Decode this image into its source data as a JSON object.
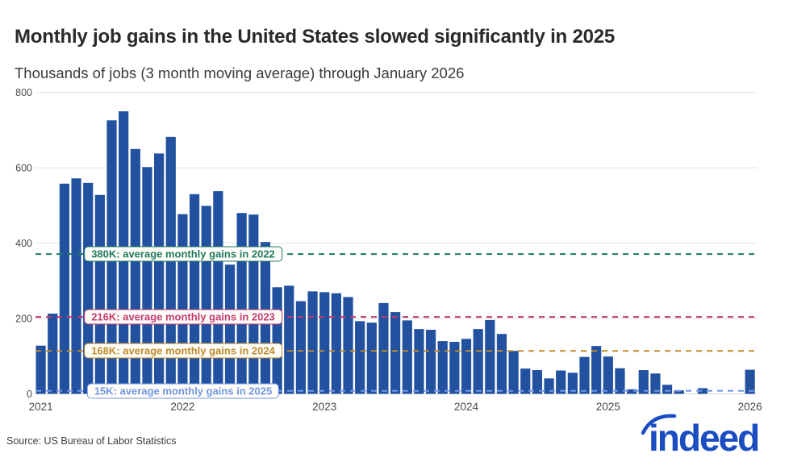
{
  "header": {
    "title": "Monthly job gains in the United States slowed significantly in 2025",
    "subtitle": "Thousands of jobs (3 month moving average) through January 2026"
  },
  "footer": {
    "source": "Source: US Bureau of Labor Statistics",
    "logo_text": "indeed"
  },
  "chart_data": {
    "type": "bar",
    "title": "Monthly job gains in the United States slowed significantly in 2025",
    "subtitle": "Thousands of jobs (3 month moving average) through January 2026",
    "ylabel": "Thousands of jobs",
    "ylim": [
      0,
      800
    ],
    "y_ticks": [
      0,
      200,
      400,
      600,
      800
    ],
    "x_tick_labels": [
      "2021",
      "2022",
      "2023",
      "2024",
      "2025",
      "2026"
    ],
    "grid": true,
    "bar_color": "#21519f",
    "grid_color": "#e2e2e7",
    "axis_text_color": "#4a4a4a",
    "x": [
      "2021-01",
      "2021-02",
      "2021-03",
      "2021-04",
      "2021-05",
      "2021-06",
      "2021-07",
      "2021-08",
      "2021-09",
      "2021-10",
      "2021-11",
      "2021-12",
      "2022-01",
      "2022-02",
      "2022-03",
      "2022-04",
      "2022-05",
      "2022-06",
      "2022-07",
      "2022-08",
      "2022-09",
      "2022-10",
      "2022-11",
      "2022-12",
      "2023-01",
      "2023-02",
      "2023-03",
      "2023-04",
      "2023-05",
      "2023-06",
      "2023-07",
      "2023-08",
      "2023-09",
      "2023-10",
      "2023-11",
      "2023-12",
      "2024-01",
      "2024-02",
      "2024-03",
      "2024-04",
      "2024-05",
      "2024-06",
      "2024-07",
      "2024-08",
      "2024-09",
      "2024-10",
      "2024-11",
      "2024-12",
      "2025-01",
      "2025-02",
      "2025-03",
      "2025-04",
      "2025-05",
      "2025-06",
      "2025-07",
      "2025-08",
      "2025-09",
      "2025-10",
      "2025-11",
      "2025-12",
      "2026-01"
    ],
    "values": [
      128,
      213,
      558,
      572,
      560,
      528,
      726,
      750,
      650,
      602,
      638,
      682,
      477,
      530,
      499,
      538,
      343,
      480,
      476,
      403,
      283,
      287,
      246,
      272,
      270,
      267,
      257,
      193,
      189,
      241,
      217,
      195,
      172,
      170,
      140,
      138,
      146,
      172,
      196,
      159,
      114,
      67,
      63,
      41,
      62,
      56,
      98,
      127,
      99,
      68,
      12,
      63,
      54,
      24,
      9,
      0,
      15,
      0,
      0,
      0,
      64
    ],
    "reference_lines": [
      {
        "label": "380K: average monthly gains in 2022",
        "value": 380,
        "display_value": 371,
        "color": "#1e7a62"
      },
      {
        "label": "216K: average monthly gains in 2023",
        "value": 216,
        "display_value": 204,
        "color": "#c23a70"
      },
      {
        "label": "168K: average monthly gains in 2024",
        "value": 168,
        "display_value": 114,
        "color": "#bf8b2e"
      },
      {
        "label": "15K: average monthly gains in 2025",
        "value": 15,
        "display_value": 8,
        "color": "#7297e6"
      }
    ],
    "legend_position": "none"
  }
}
